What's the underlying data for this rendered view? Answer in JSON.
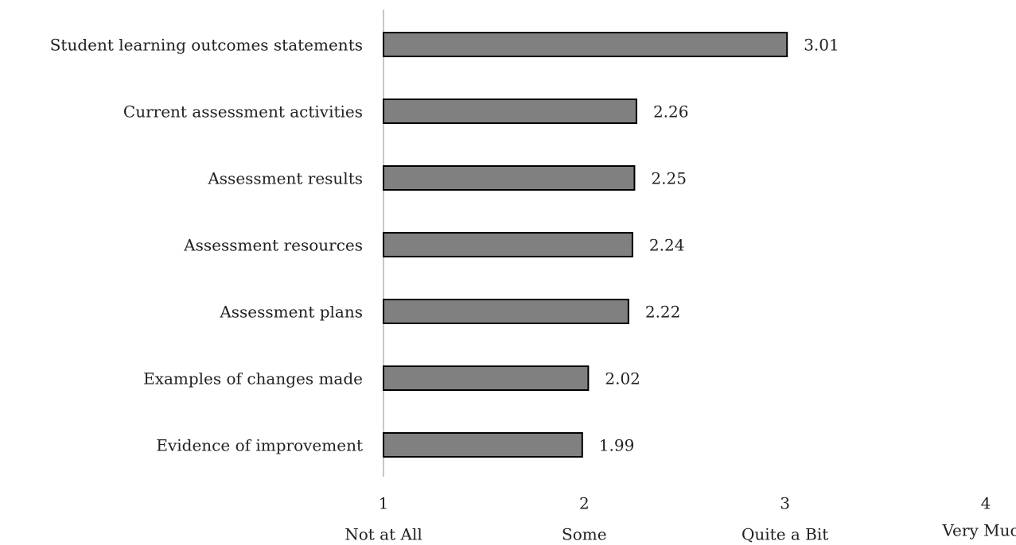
{
  "chart_data": {
    "type": "barh",
    "categories": [
      "Student learning outcomes statements",
      "Current assessment activities",
      "Assessment results",
      "Assessment resources",
      "Assessment plans",
      "Examples of changes made",
      "Evidence of improvement"
    ],
    "values": [
      3.01,
      2.26,
      2.25,
      2.24,
      2.22,
      2.02,
      1.99
    ],
    "color": "#808080",
    "xlim": [
      1,
      4
    ],
    "xticks": [
      1,
      2,
      3,
      4
    ],
    "xtick_descriptions": [
      "Not at All",
      "Some",
      "Quite a Bit",
      "Very Much"
    ],
    "grid": false
  }
}
